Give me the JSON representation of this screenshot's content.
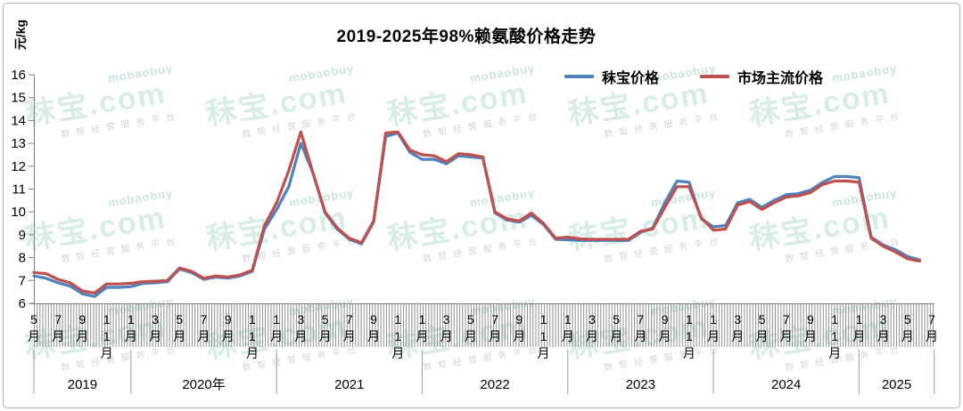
{
  "title": "2019-2025年98%赖氨酸价格走势",
  "y_axis": {
    "unit": "元/kg",
    "ticks": [
      16,
      15,
      14,
      13,
      12,
      11,
      10,
      9,
      8,
      7,
      6
    ],
    "min": 6,
    "max": 16
  },
  "legend": [
    {
      "label": "秣宝价格",
      "color": "#4F81BD"
    },
    {
      "label": "市场主流价格",
      "color": "#C0504D"
    }
  ],
  "x_axis": {
    "month_labels": [
      "5月",
      "7月",
      "9月",
      "11月",
      "1月",
      "3月",
      "5月",
      "7月",
      "9月",
      "11月",
      "1月",
      "3月",
      "5月",
      "7月",
      "9月",
      "11月",
      "1月",
      "3月",
      "5月",
      "7月",
      "9月",
      "11月",
      "1月",
      "3月",
      "5月",
      "7月",
      "9月",
      "11月",
      "1月",
      "3月",
      "5月",
      "7月",
      "9月",
      "11月",
      "1月",
      "3月",
      "5月",
      "7月"
    ],
    "years": [
      {
        "label": "2019",
        "from": 0,
        "to": 8
      },
      {
        "label": "2020年",
        "from": 8,
        "to": 20
      },
      {
        "label": "2021",
        "from": 20,
        "to": 32
      },
      {
        "label": "2022",
        "from": 32,
        "to": 44
      },
      {
        "label": "2023",
        "from": 44,
        "to": 56
      },
      {
        "label": "2024",
        "from": 56,
        "to": 68
      },
      {
        "label": "2025",
        "from": 68,
        "to": 74.2
      }
    ],
    "right_edge": 74.2
  },
  "watermark": {
    "brand": "秣宝.com",
    "latin": "mobaobuy",
    "slogan": "数智经营服务平台"
  },
  "chart_data": {
    "type": "line",
    "title": "2019-2025年98%赖氨酸价格走势",
    "ylabel": "元/kg",
    "ylim": [
      6,
      16
    ],
    "x_unit": "month",
    "grid": false,
    "legend_position": "top-right",
    "months": [
      "2019-05",
      "2019-06",
      "2019-07",
      "2019-08",
      "2019-09",
      "2019-10",
      "2019-11",
      "2019-12",
      "2020-01",
      "2020-02",
      "2020-03",
      "2020-04",
      "2020-05",
      "2020-06",
      "2020-07",
      "2020-08",
      "2020-09",
      "2020-10",
      "2020-11",
      "2020-12",
      "2021-01",
      "2021-02",
      "2021-03",
      "2021-04",
      "2021-05",
      "2021-06",
      "2021-07",
      "2021-08",
      "2021-09",
      "2021-10",
      "2021-11",
      "2021-12",
      "2022-01",
      "2022-02",
      "2022-03",
      "2022-04",
      "2022-05",
      "2022-06",
      "2022-07",
      "2022-08",
      "2022-09",
      "2022-10",
      "2022-11",
      "2022-12",
      "2023-01",
      "2023-02",
      "2023-03",
      "2023-04",
      "2023-05",
      "2023-06",
      "2023-07",
      "2023-08",
      "2023-09",
      "2023-10",
      "2023-11",
      "2023-12",
      "2024-01",
      "2024-02",
      "2024-03",
      "2024-04",
      "2024-05",
      "2024-06",
      "2024-07",
      "2024-08",
      "2024-09",
      "2024-10",
      "2024-11",
      "2024-12",
      "2025-01",
      "2025-02",
      "2025-03",
      "2025-04",
      "2025-05",
      "2025-06"
    ],
    "series": [
      {
        "name": "秣宝价格",
        "color": "#4F81BD",
        "values": [
          7.2,
          7.1,
          6.9,
          6.75,
          6.42,
          6.3,
          6.7,
          6.7,
          6.73,
          6.87,
          6.9,
          6.95,
          7.5,
          7.35,
          7.05,
          7.15,
          7.1,
          7.2,
          7.4,
          9.25,
          10.1,
          11.1,
          13.0,
          11.7,
          9.95,
          9.25,
          8.8,
          8.6,
          9.55,
          13.3,
          13.45,
          12.6,
          12.3,
          12.3,
          12.1,
          12.45,
          12.4,
          12.35,
          9.95,
          9.65,
          9.55,
          9.85,
          9.45,
          8.8,
          8.78,
          8.75,
          8.75,
          8.75,
          8.75,
          8.75,
          9.1,
          9.3,
          10.4,
          11.35,
          11.3,
          9.7,
          9.35,
          9.4,
          10.4,
          10.55,
          10.2,
          10.5,
          10.75,
          10.8,
          10.95,
          11.3,
          11.55,
          11.55,
          11.5,
          8.9,
          8.55,
          8.35,
          8.05,
          7.9
        ]
      },
      {
        "name": "市场主流价格",
        "color": "#C0504D",
        "values": [
          7.35,
          7.3,
          7.05,
          6.9,
          6.55,
          6.45,
          6.85,
          6.85,
          6.88,
          6.95,
          6.97,
          7.0,
          7.55,
          7.4,
          7.1,
          7.2,
          7.15,
          7.25,
          7.45,
          9.4,
          10.4,
          11.8,
          13.5,
          11.7,
          10.0,
          9.3,
          8.85,
          8.65,
          9.6,
          13.45,
          13.5,
          12.7,
          12.5,
          12.45,
          12.2,
          12.55,
          12.5,
          12.4,
          10.0,
          9.7,
          9.6,
          9.95,
          9.5,
          8.85,
          8.9,
          8.82,
          8.8,
          8.8,
          8.8,
          8.8,
          9.15,
          9.25,
          10.2,
          11.1,
          11.1,
          9.75,
          9.2,
          9.25,
          10.3,
          10.45,
          10.1,
          10.4,
          10.65,
          10.7,
          10.85,
          11.2,
          11.35,
          11.35,
          11.3,
          8.85,
          8.5,
          8.25,
          7.95,
          7.85
        ]
      }
    ]
  }
}
